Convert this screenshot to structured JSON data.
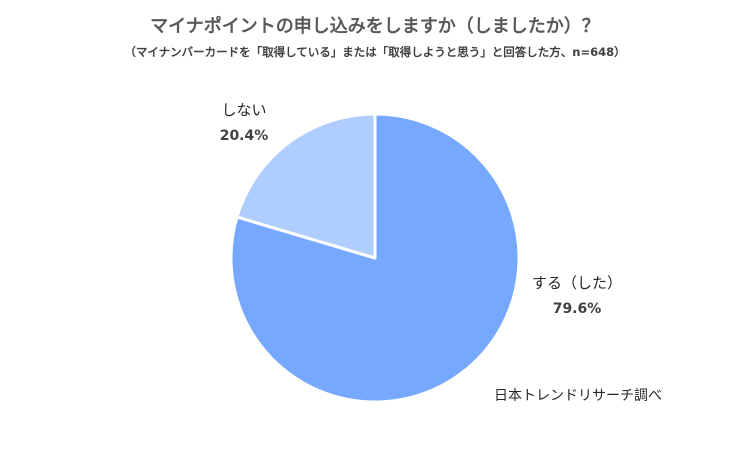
{
  "chart_data": {
    "type": "pie",
    "title": "マイナポイントの申し込みをしますか（しましたか）？",
    "subtitle": "（マイナンバーカードを「取得している」または「取得しようと思う」と回答した方、n=648）",
    "categories": [
      "する（した）",
      "しない"
    ],
    "values": [
      79.6,
      20.4
    ],
    "value_labels": [
      "79.6%",
      "20.4%"
    ],
    "colors": [
      "#76a8ff",
      "#b0cdff"
    ],
    "start": "12 o'clock, clockwise",
    "source": "日本トレンドリサーチ調べ"
  }
}
